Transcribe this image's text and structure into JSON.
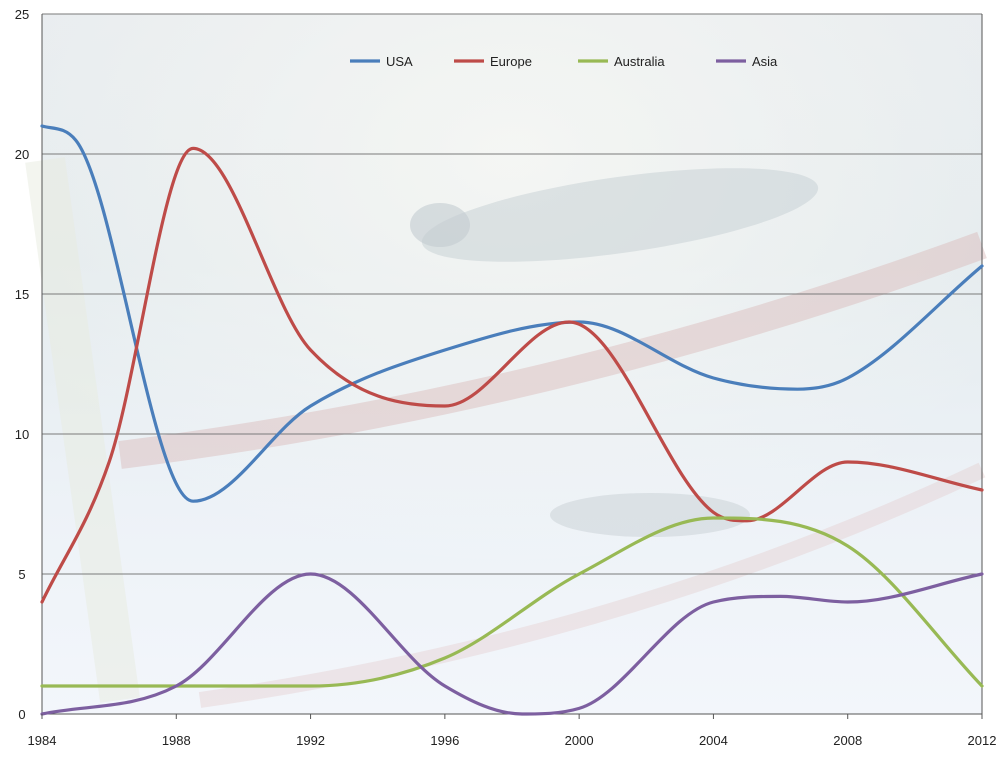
{
  "chart_data": {
    "type": "line",
    "smooth": true,
    "x": [
      1984,
      1988,
      1992,
      1996,
      2000,
      2004,
      2008,
      2012
    ],
    "x_tick_labels": [
      "1984",
      "1988",
      "1992",
      "1996",
      "2000",
      "2004",
      "2008",
      "2012"
    ],
    "y_ticks": [
      0,
      5,
      10,
      15,
      20,
      25
    ],
    "y_tick_labels": [
      "0",
      "5",
      "10",
      "15",
      "20",
      "25"
    ],
    "ylim": [
      0,
      25
    ],
    "xlim": [
      1984,
      2012
    ],
    "grid": "horizontal",
    "legend_position": "top",
    "background": "faded underwater swimmer photograph",
    "series": [
      {
        "name": "USA",
        "color": "#4a7ebb",
        "x": [
          1984,
          1985,
          1988.5,
          1992,
          1996,
          2000,
          2004,
          2006.5,
          2008,
          2012
        ],
        "values": [
          21,
          20.5,
          7.6,
          11,
          13,
          14,
          12,
          11.6,
          12,
          16
        ]
      },
      {
        "name": "Europe",
        "color": "#be4b48",
        "x": [
          1984,
          1986,
          1988.5,
          1992,
          1996,
          1999.7,
          2004,
          2005,
          2008,
          2012
        ],
        "values": [
          4,
          9,
          20.2,
          13,
          11,
          14,
          7.2,
          6.9,
          9,
          8
        ]
      },
      {
        "name": "Australia",
        "color": "#98b954",
        "x": [
          1984,
          1988,
          1992,
          1996,
          2000,
          2004,
          2008,
          2012
        ],
        "values": [
          1,
          1,
          1,
          2,
          5,
          7,
          6,
          1
        ]
      },
      {
        "name": "Asia",
        "color": "#7d5fa0",
        "x": [
          1984,
          1988,
          1992,
          1996,
          1998.3,
          2000,
          2004,
          2006,
          2008,
          2012
        ],
        "values": [
          0,
          1,
          5,
          1,
          0,
          0.2,
          4,
          4.2,
          4,
          5
        ]
      }
    ]
  }
}
